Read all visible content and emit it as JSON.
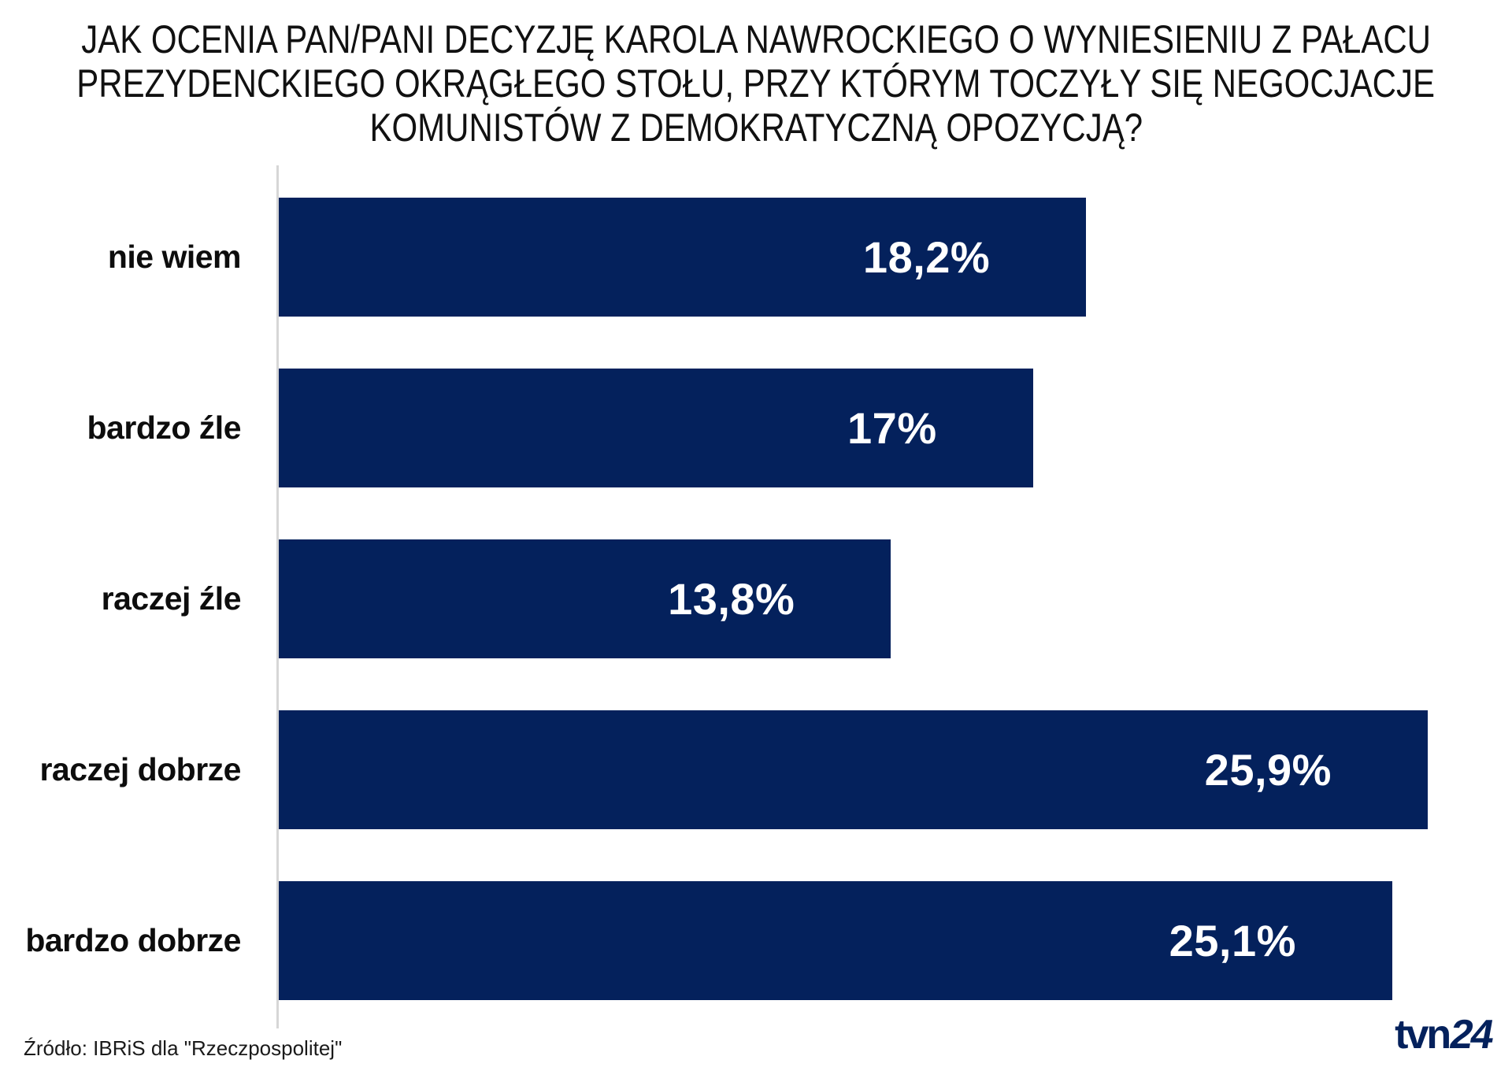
{
  "title": {
    "lines": [
      "JAK OCENIA PAN/PANI DECYZJĘ KAROLA NAWROCKIEGO O WYNIESIENIU Z PAŁACU",
      "PREZYDENCKIEGO OKRĄGŁEGO STOŁU, PRZY KTÓRYM TOCZYŁY SIĘ NEGOCJACJE",
      "KOMUNISTÓW Z DEMOKRATYCZNĄ OPOZYCJĄ?"
    ]
  },
  "chart_data": {
    "type": "bar",
    "orientation": "horizontal",
    "title": "JAK OCENIA PAN/PANI DECYZJĘ KAROLA NAWROCKIEGO O WYNIESIENIU Z PAŁACU PREZYDENCKIEGO OKRĄGŁEGO STOŁU, PRZY KTÓRYM TOCZYŁY SIĘ NEGOCJACJE KOMUNISTÓW Z DEMOKRATYCZNĄ OPOZYCJĄ?",
    "categories": [
      "nie wiem",
      "bardzo źle",
      "raczej źle",
      "raczej dobrze",
      "bardzo dobrze"
    ],
    "values": [
      18.2,
      17,
      13.8,
      25.9,
      25.1
    ],
    "value_labels": [
      "18,2%",
      "17%",
      "13,8%",
      "25,9%",
      "25,1%"
    ],
    "xlabel": "",
    "ylabel": "",
    "xlim": [
      0,
      27.8
    ],
    "grid": false,
    "legend": false,
    "bar_color": "#04215c",
    "value_label_color": "#ffffff",
    "category_label_color": "#0d0d0d"
  },
  "footer": {
    "source": "Źródło: IBRiS dla \"Rzeczpospolitej\"",
    "logo_tvn": "tvn",
    "logo_24": "24",
    "logo_color": "#04215c"
  }
}
